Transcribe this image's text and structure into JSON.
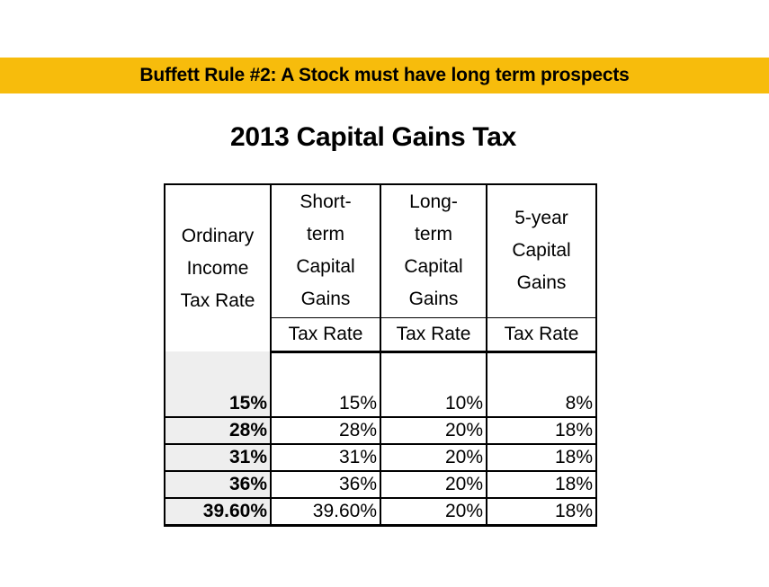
{
  "banner": "Buffett Rule #2: A Stock must have long term prospects",
  "title": "2013 Capital Gains Tax",
  "table": {
    "header": {
      "col0": [
        "Ordinary",
        "Income",
        "Tax Rate"
      ],
      "col1": [
        "Short-",
        "term",
        "Capital",
        "Gains"
      ],
      "col2": [
        "Long-",
        "term",
        "Capital",
        "Gains"
      ],
      "col3": [
        "5-year",
        "Capital",
        "Gains"
      ],
      "sub": [
        "Tax Rate",
        "Tax Rate",
        "Tax Rate"
      ]
    },
    "rows": [
      [
        "15%",
        "15%",
        "10%",
        "8%"
      ],
      [
        "28%",
        "28%",
        "20%",
        "18%"
      ],
      [
        "31%",
        "31%",
        "20%",
        "18%"
      ],
      [
        "36%",
        "36%",
        "20%",
        "18%"
      ],
      [
        "39.60%",
        "39.60%",
        "20%",
        "18%"
      ]
    ]
  }
}
